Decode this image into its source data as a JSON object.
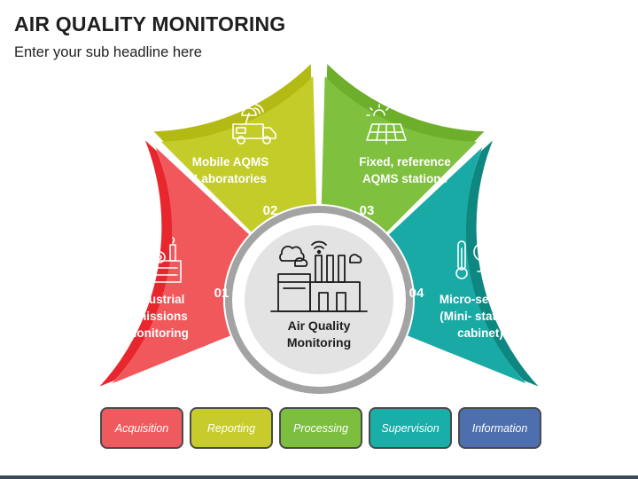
{
  "title": "AIR QUALITY MONITORING",
  "subtitle": "Enter your sub headline here",
  "center": {
    "label_line1": "Air Quality",
    "label_line2": "Monitoring",
    "icon": "factory-icon"
  },
  "segments": [
    {
      "number": "01",
      "line1": "Industrial",
      "line2": "Emissions",
      "line3": "Monitoring",
      "icon": "industrial-plant-icon",
      "color": "#f0585c",
      "accent": "#e8262d"
    },
    {
      "number": "02",
      "line1": "Mobile AQMS",
      "line2": "Laboratories",
      "icon": "mobile-lab-van-icon",
      "color": "#c4cc2a",
      "accent": "#b3ba14"
    },
    {
      "number": "03",
      "line1": "Fixed, reference",
      "line2": "AQMS stations",
      "icon": "solar-panel-icon",
      "color": "#7fc03e",
      "accent": "#6daf2a"
    },
    {
      "number": "04",
      "line1": "Micro-sensors",
      "line2": "(Mini- stations",
      "line3": "cabinet)",
      "icon": "thermometer-sensor-icon",
      "color": "#1aaaa5",
      "accent": "#0e8780"
    }
  ],
  "pills": [
    {
      "label": "Acquisition",
      "color": "#ef5a5f"
    },
    {
      "label": "Reporting",
      "color": "#c7cc2c"
    },
    {
      "label": "Processing",
      "color": "#7cbf3f"
    },
    {
      "label": "Supervision",
      "color": "#1aaea8"
    },
    {
      "label": "Information",
      "color": "#4e6fae"
    }
  ]
}
